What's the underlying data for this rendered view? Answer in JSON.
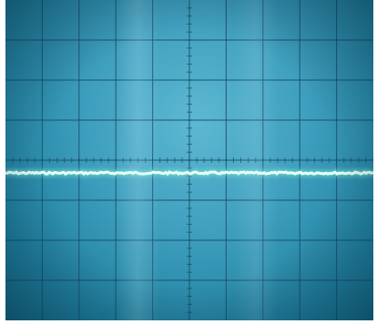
{
  "scene": {
    "subject": "oscilloscope-screen",
    "graticule": {
      "columns": 10,
      "rows": 8
    },
    "trace": {
      "kind": "flat-line",
      "level_fraction_from_top": 0.54
    }
  },
  "colors": {
    "screen": "#3f9fbe",
    "grid": "#17506a",
    "trace": "#e8fff7",
    "trace_glow": "#7fe9d8"
  }
}
